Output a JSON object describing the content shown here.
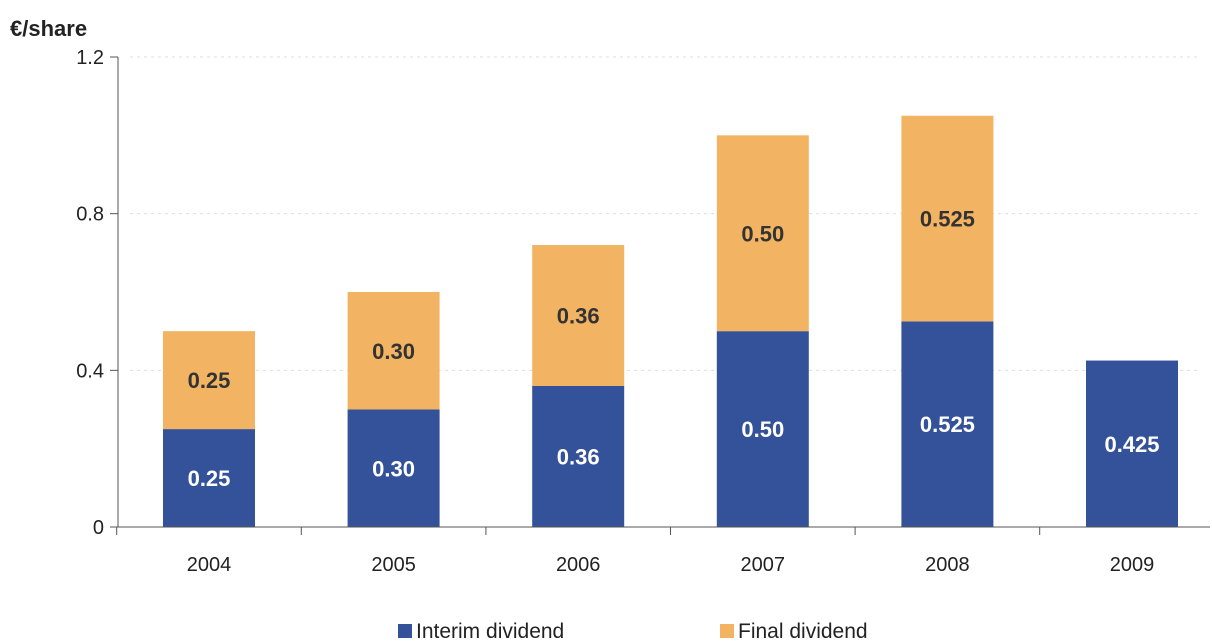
{
  "chart_data": {
    "type": "bar",
    "stacked": true,
    "ylabel": "€/share",
    "ylim": [
      0,
      1.2
    ],
    "yticks": [
      "0",
      "0.4",
      "0.8",
      "1.2"
    ],
    "ytick_values": [
      0,
      0.4,
      0.8,
      1.2
    ],
    "grid": "horizontal dashed",
    "legend_position": "bottom",
    "categories": [
      "2004",
      "2005",
      "2006",
      "2007",
      "2008",
      "2009"
    ],
    "series": [
      {
        "name": "Interim dividend",
        "color": "#34529a",
        "values": [
          0.25,
          0.3,
          0.36,
          0.5,
          0.525,
          0.425
        ],
        "labels": [
          "0.25",
          "0.30",
          "0.36",
          "0.50",
          "0.525",
          "0.425"
        ],
        "label_color": "#ffffff"
      },
      {
        "name": "Final dividend",
        "color": "#f2b463",
        "values": [
          0.25,
          0.3,
          0.36,
          0.5,
          0.525,
          null
        ],
        "labels": [
          "0.25",
          "0.30",
          "0.36",
          "0.50",
          "0.525",
          ""
        ],
        "label_color": "#333333"
      }
    ]
  }
}
